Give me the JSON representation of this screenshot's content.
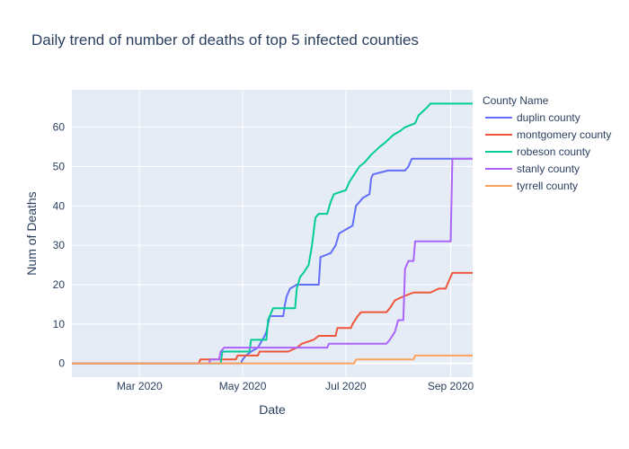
{
  "chart_data": {
    "type": "line",
    "title": "Daily trend of number of deaths of top 5 infected counties",
    "xlabel": "Date",
    "ylabel": "Num of Deaths",
    "legend_title": "County Name",
    "legend_position": "right",
    "x_ticks": [
      {
        "date": "2020-03-01",
        "label": "Mar 2020"
      },
      {
        "date": "2020-05-01",
        "label": "May 2020"
      },
      {
        "date": "2020-07-01",
        "label": "Jul 2020"
      },
      {
        "date": "2020-09-01",
        "label": "Sep 2020"
      }
    ],
    "y_ticks": [
      0,
      10,
      20,
      30,
      40,
      50,
      60
    ],
    "xlim": [
      "2020-01-21",
      "2020-09-14"
    ],
    "ylim": [
      -3.5,
      69.5
    ],
    "grid": true,
    "plot_background": "#e5ecf6",
    "series": [
      {
        "name": "duplin county",
        "color": "#636efa",
        "points": [
          [
            "2020-01-21",
            0
          ],
          [
            "2020-04-30",
            0
          ],
          [
            "2020-05-01",
            1
          ],
          [
            "2020-05-03",
            2
          ],
          [
            "2020-05-06",
            3
          ],
          [
            "2020-05-10",
            4
          ],
          [
            "2020-05-14",
            7
          ],
          [
            "2020-05-15",
            8
          ],
          [
            "2020-05-17",
            12
          ],
          [
            "2020-05-25",
            12
          ],
          [
            "2020-05-26",
            15
          ],
          [
            "2020-05-27",
            17
          ],
          [
            "2020-05-29",
            19
          ],
          [
            "2020-06-02",
            20
          ],
          [
            "2020-06-15",
            20
          ],
          [
            "2020-06-16",
            27
          ],
          [
            "2020-06-22",
            28
          ],
          [
            "2020-06-25",
            30
          ],
          [
            "2020-06-27",
            33
          ],
          [
            "2020-07-05",
            35
          ],
          [
            "2020-07-07",
            40
          ],
          [
            "2020-07-11",
            42
          ],
          [
            "2020-07-15",
            43
          ],
          [
            "2020-07-16",
            47
          ],
          [
            "2020-07-17",
            48
          ],
          [
            "2020-07-26",
            49
          ],
          [
            "2020-08-05",
            49
          ],
          [
            "2020-08-07",
            50
          ],
          [
            "2020-08-09",
            52
          ],
          [
            "2020-09-14",
            52
          ]
        ]
      },
      {
        "name": "montgomery county",
        "color": "#ef553b",
        "points": [
          [
            "2020-01-21",
            0
          ],
          [
            "2020-04-05",
            0
          ],
          [
            "2020-04-06",
            1
          ],
          [
            "2020-04-27",
            1
          ],
          [
            "2020-04-28",
            2
          ],
          [
            "2020-05-10",
            2
          ],
          [
            "2020-05-11",
            3
          ],
          [
            "2020-05-28",
            3
          ],
          [
            "2020-06-02",
            4
          ],
          [
            "2020-06-05",
            5
          ],
          [
            "2020-06-12",
            6
          ],
          [
            "2020-06-15",
            7
          ],
          [
            "2020-06-25",
            7
          ],
          [
            "2020-06-26",
            9
          ],
          [
            "2020-07-04",
            9
          ],
          [
            "2020-07-05",
            10
          ],
          [
            "2020-07-08",
            12
          ],
          [
            "2020-07-10",
            13
          ],
          [
            "2020-07-25",
            13
          ],
          [
            "2020-07-27",
            14
          ],
          [
            "2020-07-30",
            16
          ],
          [
            "2020-08-04",
            17
          ],
          [
            "2020-08-10",
            18
          ],
          [
            "2020-08-20",
            18
          ],
          [
            "2020-08-25",
            19
          ],
          [
            "2020-08-29",
            19
          ],
          [
            "2020-08-31",
            21
          ],
          [
            "2020-09-02",
            23
          ],
          [
            "2020-09-14",
            23
          ]
        ]
      },
      {
        "name": "robeson county",
        "color": "#00cc96",
        "points": [
          [
            "2020-01-21",
            0
          ],
          [
            "2020-04-18",
            0
          ],
          [
            "2020-04-19",
            3
          ],
          [
            "2020-05-05",
            3
          ],
          [
            "2020-05-06",
            6
          ],
          [
            "2020-05-15",
            6
          ],
          [
            "2020-05-16",
            11
          ],
          [
            "2020-05-18",
            13
          ],
          [
            "2020-05-19",
            14
          ],
          [
            "2020-06-01",
            14
          ],
          [
            "2020-06-02",
            19
          ],
          [
            "2020-06-04",
            22
          ],
          [
            "2020-06-06",
            23
          ],
          [
            "2020-06-09",
            25
          ],
          [
            "2020-06-11",
            30
          ],
          [
            "2020-06-13",
            37
          ],
          [
            "2020-06-15",
            38
          ],
          [
            "2020-06-20",
            38
          ],
          [
            "2020-06-22",
            41
          ],
          [
            "2020-06-24",
            43
          ],
          [
            "2020-07-01",
            44
          ],
          [
            "2020-07-03",
            46
          ],
          [
            "2020-07-06",
            48
          ],
          [
            "2020-07-09",
            50
          ],
          [
            "2020-07-12",
            51
          ],
          [
            "2020-07-16",
            53
          ],
          [
            "2020-07-21",
            55
          ],
          [
            "2020-07-24",
            56
          ],
          [
            "2020-07-29",
            58
          ],
          [
            "2020-08-02",
            59
          ],
          [
            "2020-08-05",
            60
          ],
          [
            "2020-08-11",
            61
          ],
          [
            "2020-08-13",
            63
          ],
          [
            "2020-08-18",
            65
          ],
          [
            "2020-08-20",
            66
          ],
          [
            "2020-09-14",
            66
          ]
        ]
      },
      {
        "name": "stanly county",
        "color": "#ab63fa",
        "points": [
          [
            "2020-01-21",
            0
          ],
          [
            "2020-04-11",
            0
          ],
          [
            "2020-04-12",
            1
          ],
          [
            "2020-04-17",
            1
          ],
          [
            "2020-04-18",
            3
          ],
          [
            "2020-04-20",
            4
          ],
          [
            "2020-06-20",
            4
          ],
          [
            "2020-06-21",
            5
          ],
          [
            "2020-07-25",
            5
          ],
          [
            "2020-07-27",
            6
          ],
          [
            "2020-07-30",
            8
          ],
          [
            "2020-08-01",
            11
          ],
          [
            "2020-08-04",
            11
          ],
          [
            "2020-08-05",
            24
          ],
          [
            "2020-08-07",
            26
          ],
          [
            "2020-08-10",
            26
          ],
          [
            "2020-08-11",
            31
          ],
          [
            "2020-09-01",
            31
          ],
          [
            "2020-09-02",
            52
          ],
          [
            "2020-09-14",
            52
          ]
        ]
      },
      {
        "name": "tyrrell county",
        "color": "#ffa15a",
        "points": [
          [
            "2020-01-21",
            0
          ],
          [
            "2020-07-06",
            0
          ],
          [
            "2020-07-07",
            1
          ],
          [
            "2020-08-10",
            1
          ],
          [
            "2020-08-11",
            2
          ],
          [
            "2020-09-14",
            2
          ]
        ]
      }
    ]
  }
}
